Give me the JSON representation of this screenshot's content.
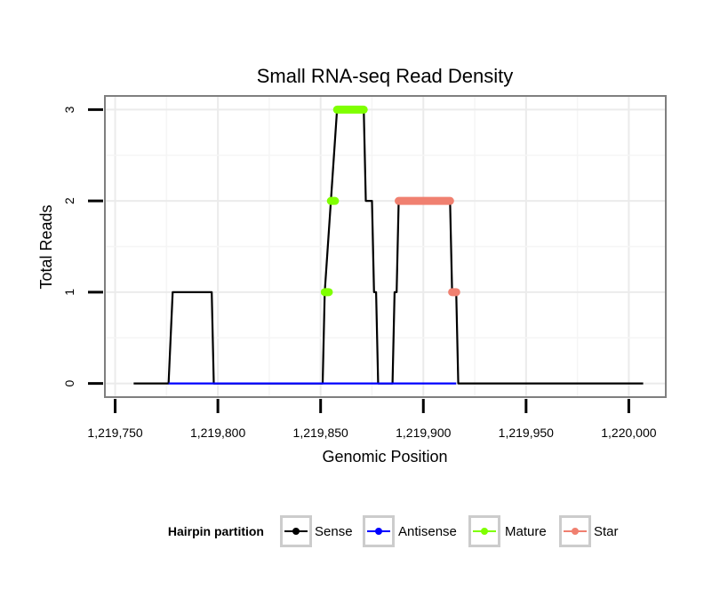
{
  "chart_data": {
    "type": "line",
    "title": "Small RNA-seq Read Density",
    "xlabel": "Genomic Position",
    "ylabel": "Total Reads",
    "xlim": [
      1219745,
      1220018
    ],
    "ylim": [
      -0.15,
      3.15
    ],
    "x_ticks": [
      1219750,
      1219800,
      1219850,
      1219900,
      1219950,
      1220000
    ],
    "x_tick_labels": [
      "1,219,750",
      "1,219,800",
      "1,219,850",
      "1,219,900",
      "1,219,950",
      "1,220,000"
    ],
    "y_ticks": [
      0,
      1,
      2,
      3
    ],
    "y_tick_labels": [
      "0",
      "1",
      "2",
      "3"
    ],
    "grid": true,
    "legend": {
      "title": "Hairpin partition",
      "placement": "bottom",
      "entries": [
        "Sense",
        "Antisense",
        "Mature",
        "Star"
      ]
    },
    "series": [
      {
        "name": "Sense",
        "color": "#000000",
        "kind": "line",
        "points": [
          [
            1219759,
            0
          ],
          [
            1219776,
            0
          ],
          [
            1219778,
            1
          ],
          [
            1219797,
            1
          ],
          [
            1219798,
            0
          ],
          [
            1219851,
            0
          ],
          [
            1219852,
            1
          ],
          [
            1219855,
            2
          ],
          [
            1219858,
            3
          ],
          [
            1219871,
            3
          ],
          [
            1219872,
            2
          ],
          [
            1219875,
            2
          ],
          [
            1219876,
            1
          ],
          [
            1219877,
            1
          ],
          [
            1219878,
            0
          ],
          [
            1219885,
            0
          ],
          [
            1219886,
            1
          ],
          [
            1219887,
            1
          ],
          [
            1219888,
            2
          ],
          [
            1219913,
            2
          ],
          [
            1219914,
            1
          ],
          [
            1219916,
            1
          ],
          [
            1219917,
            0
          ],
          [
            1220007,
            0
          ]
        ]
      },
      {
        "name": "Antisense",
        "color": "#0000ff",
        "kind": "line",
        "points": [
          [
            1219776,
            0
          ],
          [
            1219797,
            0
          ],
          [
            1219851,
            0
          ],
          [
            1219916,
            0
          ]
        ]
      },
      {
        "name": "Mature",
        "color": "#7fff00",
        "kind": "segments",
        "segments": [
          [
            [
              1219852,
              1
            ],
            [
              1219854,
              1
            ]
          ],
          [
            [
              1219855,
              2
            ],
            [
              1219857,
              2
            ]
          ],
          [
            [
              1219858,
              3
            ],
            [
              1219871,
              3
            ]
          ]
        ]
      },
      {
        "name": "Star",
        "color": "#f08070",
        "kind": "segments",
        "segments": [
          [
            [
              1219888,
              2
            ],
            [
              1219913,
              2
            ]
          ],
          [
            [
              1219914,
              1
            ],
            [
              1219916,
              1
            ]
          ]
        ]
      }
    ]
  }
}
